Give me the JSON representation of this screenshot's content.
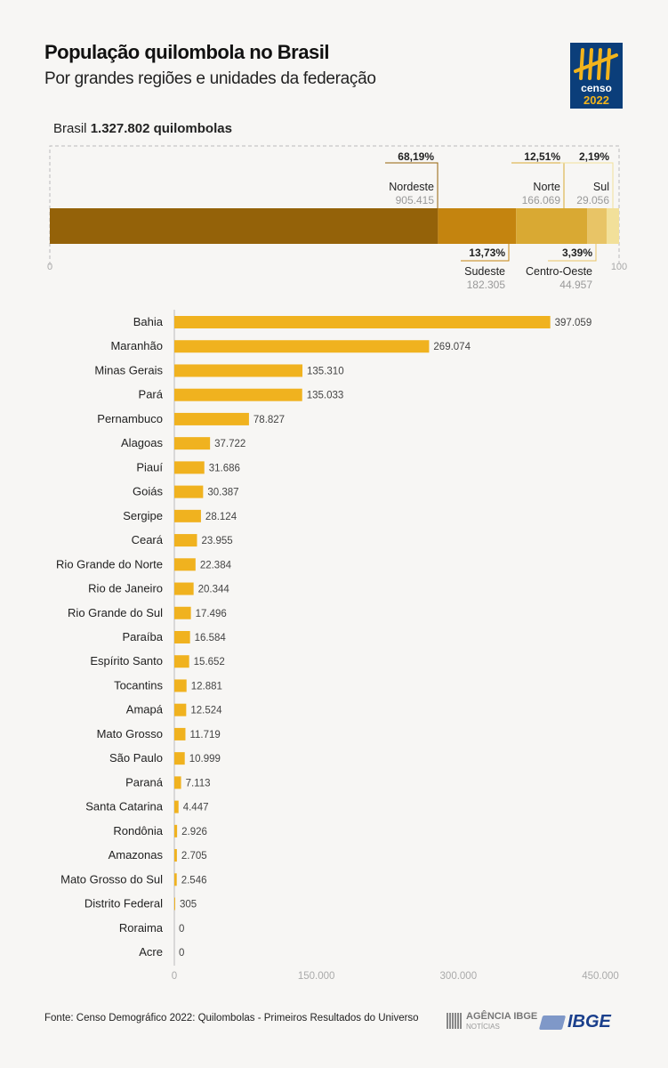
{
  "header": {
    "title": "População quilombola no Brasil",
    "subtitle": "Por grandes regiões e unidades da federação"
  },
  "logo": {
    "text_top": "censo",
    "text_bottom": "2022",
    "bg": "#0b3e7a",
    "accent": "#f2b41c"
  },
  "total": {
    "label": "Brasil",
    "value": "1.327.802 quilombolas"
  },
  "chart_data": [
    {
      "type": "bar",
      "stacked": true,
      "orientation": "horizontal",
      "axis": {
        "min": 0,
        "max": 100,
        "tick_labels": [
          "0",
          "100"
        ]
      },
      "series": [
        {
          "name": "Nordeste",
          "percent": 68.19,
          "percent_label": "68,19%",
          "value_label": "905.415",
          "color": "#946209"
        },
        {
          "name": "Sudeste",
          "percent": 13.73,
          "percent_label": "13,73%",
          "value_label": "182.305",
          "color": "#c4840f"
        },
        {
          "name": "Norte",
          "percent": 12.51,
          "percent_label": "12,51%",
          "value_label": "166.069",
          "color": "#d9a933"
        },
        {
          "name": "Centro-Oeste",
          "percent": 3.39,
          "percent_label": "3,39%",
          "value_label": "44.957",
          "color": "#e8c466"
        },
        {
          "name": "Sul",
          "percent": 2.19,
          "percent_label": "2,19%",
          "value_label": "29.056",
          "color": "#f2e09a"
        }
      ]
    },
    {
      "type": "bar",
      "orientation": "horizontal",
      "color": "#f0b21f",
      "xlim": [
        0,
        450000
      ],
      "ticks": [
        0,
        150000,
        300000,
        450000
      ],
      "tick_labels": [
        "0",
        "150.000",
        "300.000",
        "450.000"
      ],
      "categories": [
        "Bahia",
        "Maranhão",
        "Minas Gerais",
        "Pará",
        "Pernambuco",
        "Alagoas",
        "Piauí",
        "Goiás",
        "Sergipe",
        "Ceará",
        "Rio Grande do Norte",
        "Rio de Janeiro",
        "Rio Grande do Sul",
        "Paraíba",
        "Espírito Santo",
        "Tocantins",
        "Amapá",
        "Mato Grosso",
        "São Paulo",
        "Paraná",
        "Santa Catarina",
        "Rondônia",
        "Amazonas",
        "Mato Grosso do Sul",
        "Distrito Federal",
        "Roraima",
        "Acre"
      ],
      "values": [
        397059,
        269074,
        135310,
        135033,
        78827,
        37722,
        31686,
        30387,
        28124,
        23955,
        22384,
        20344,
        17496,
        16584,
        15652,
        12881,
        12524,
        11719,
        10999,
        7113,
        4447,
        2926,
        2705,
        2546,
        305,
        0,
        0
      ],
      "value_labels": [
        "397.059",
        "269.074",
        "135.310",
        "135.033",
        "78.827",
        "37.722",
        "31.686",
        "30.387",
        "28.124",
        "23.955",
        "22.384",
        "20.344",
        "17.496",
        "16.584",
        "15.652",
        "12.881",
        "12.524",
        "11.719",
        "10.999",
        "7.113",
        "4.447",
        "2.926",
        "2.705",
        "2.546",
        "305",
        "0",
        "0"
      ]
    }
  ],
  "footer": {
    "source": "Fonte: Censo Demográfico 2022: Quilombolas - Primeiros Resultados do Universo",
    "agency_line1": "AGÊNCIA IBGE",
    "agency_line2": "NOTÍCIAS",
    "ibge": "IBGE"
  }
}
